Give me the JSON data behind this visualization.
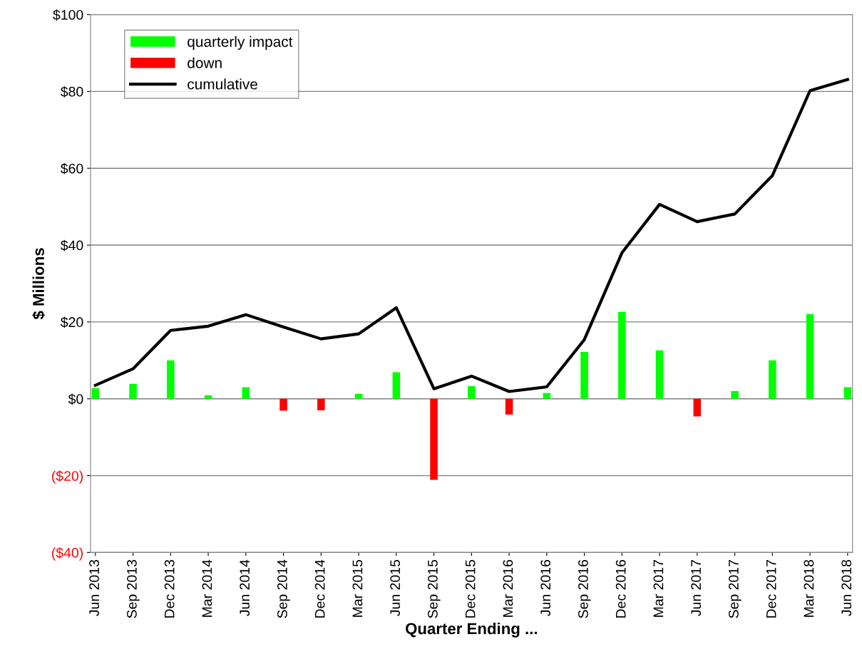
{
  "chart_data": {
    "type": "bar",
    "xlabel": "Quarter Ending ...",
    "ylabel": "$ Millions",
    "categories": [
      "Jun 2013",
      "Sep 2013",
      "Dec 2013",
      "Mar 2014",
      "Jun 2014",
      "Sep 2014",
      "Dec 2014",
      "Mar 2015",
      "Jun 2015",
      "Sep 2015",
      "Dec 2015",
      "Mar 2016",
      "Jun 2016",
      "Sep 2016",
      "Dec 2016",
      "Mar 2017",
      "Jun 2017",
      "Sep 2017",
      "Dec 2017",
      "Mar 2018",
      "Jun 2018"
    ],
    "series": [
      {
        "name": "quarterly impact",
        "color": "#00ff00",
        "values": [
          2.8,
          3.9,
          10,
          0.9,
          3,
          null,
          null,
          1.3,
          6.9,
          null,
          3.3,
          null,
          1.5,
          12.2,
          22.6,
          12.6,
          null,
          2,
          10,
          22,
          3
        ]
      },
      {
        "name": "down",
        "color": "#ff0000",
        "values": [
          null,
          null,
          null,
          null,
          null,
          -3.1,
          -3,
          null,
          null,
          -21.1,
          null,
          -4.1,
          null,
          null,
          null,
          null,
          -4.6,
          null,
          null,
          null,
          null
        ]
      },
      {
        "name": "cumulative",
        "type": "line",
        "color": "#000000",
        "values": [
          3.5,
          7.8,
          17.8,
          18.9,
          21.9,
          18.7,
          15.6,
          16.9,
          23.7,
          2.6,
          5.9,
          1.9,
          3.1,
          15.4,
          38,
          50.6,
          46.1,
          48.1,
          58.1,
          80.2,
          83.1
        ]
      }
    ],
    "ylim": [
      -40,
      100
    ],
    "yticks": [
      {
        "value": -40,
        "label": "($40)"
      },
      {
        "value": -20,
        "label": "($20)"
      },
      {
        "value": 0,
        "label": "$0"
      },
      {
        "value": 20,
        "label": "$20"
      },
      {
        "value": 40,
        "label": "$40"
      },
      {
        "value": 60,
        "label": "$60"
      },
      {
        "value": 80,
        "label": "$80"
      },
      {
        "value": 100,
        "label": "$100"
      }
    ],
    "grid": "y",
    "legend": "top left"
  }
}
